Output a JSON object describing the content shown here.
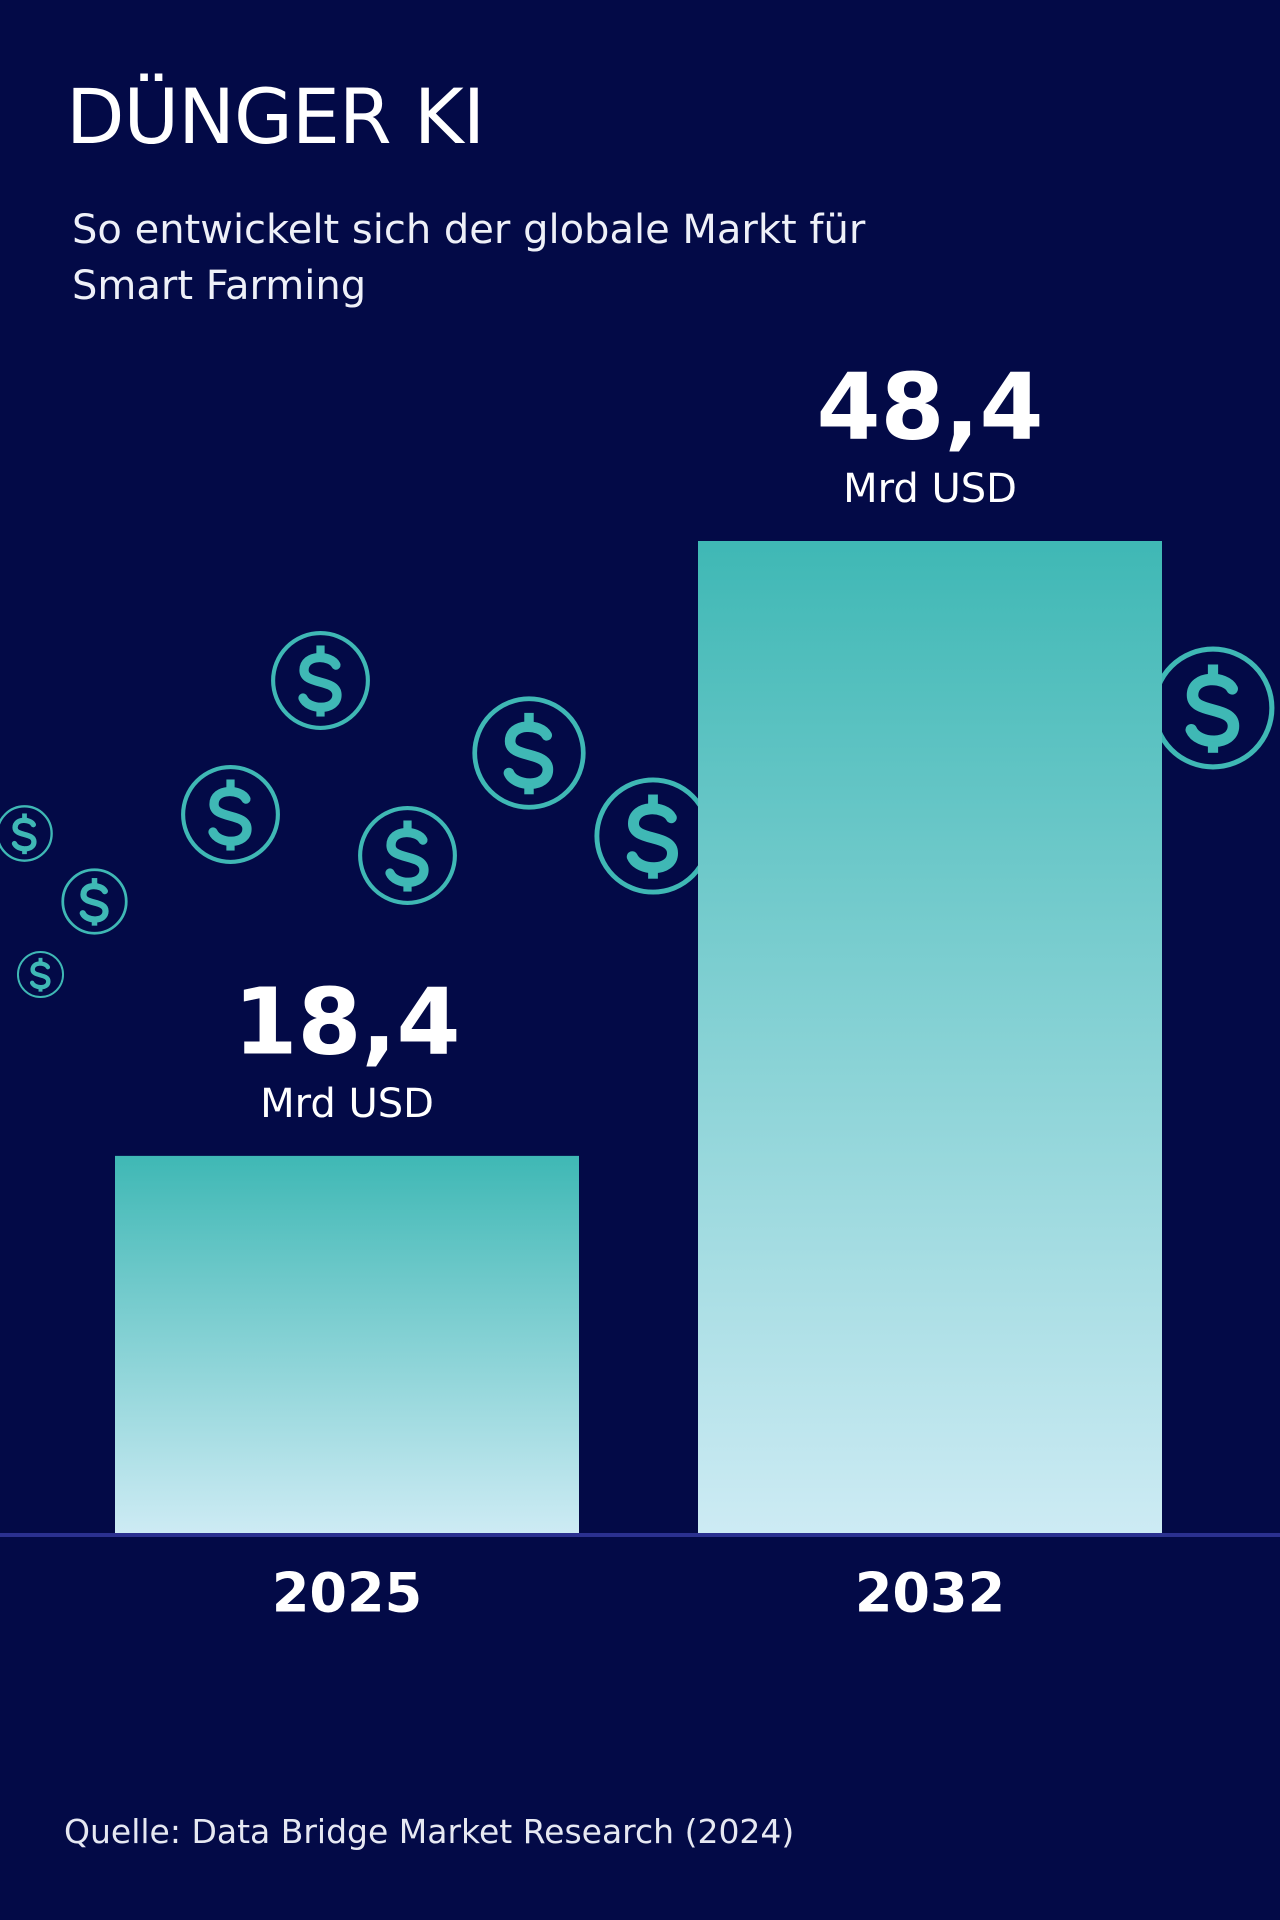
{
  "chart_data": {
    "type": "bar",
    "title": "DÜNGER KI",
    "subtitle": "So entwickelt sich der globale Markt für Smart Farming",
    "categories": [
      "2025",
      "2032"
    ],
    "values": [
      18.4,
      48.4
    ],
    "value_labels": [
      "18,4",
      "48,4"
    ],
    "unit": "Mrd USD",
    "color": "#3fb8b5",
    "source": "Quelle: Data Bridge Market Research (2024)"
  }
}
